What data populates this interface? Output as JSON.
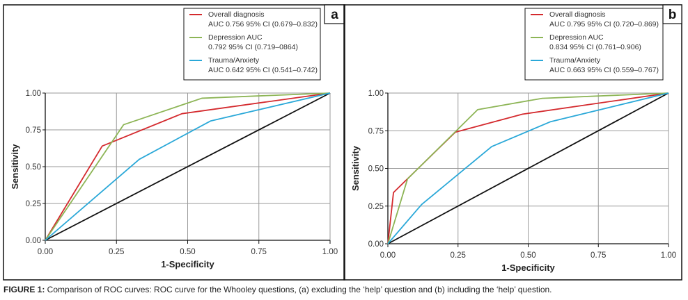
{
  "caption": {
    "label": "FIGURE 1:",
    "text": " Comparison of ROC curves: ROC curve for the Whooley questions, (a) excluding the ‘help’ question and (b) including the ‘help’ question."
  },
  "colors": {
    "overall": "#d42a2e",
    "depression": "#8db556",
    "trauma": "#2aa8d8",
    "reference": "#111111",
    "grid": "#9a9a9a"
  },
  "chart_data": [
    {
      "type": "line",
      "panel": "a",
      "xlabel": "1-Specificity",
      "ylabel": "Sensitivity",
      "xlim": [
        0,
        1
      ],
      "ylim": [
        0,
        1
      ],
      "xticks": [
        "0.00",
        "0.25",
        "0.50",
        "0.75",
        "1.00"
      ],
      "yticks": [
        "0.00",
        "0.25",
        "0.50",
        "0.75",
        "1.00"
      ],
      "grid": true,
      "legend_position": "top-right",
      "series": [
        {
          "name": "Overall diagnosis",
          "legend": [
            "Overall diagnosis",
            "AUC 0.756 95% CI (0.679–0.832)"
          ],
          "color_key": "overall",
          "x": [
            0,
            0.2,
            0.48,
            1
          ],
          "y": [
            0,
            0.64,
            0.86,
            1
          ]
        },
        {
          "name": "Depression AUC",
          "legend": [
            "Depression AUC",
            "0.792 95% CI (0.719–0864)"
          ],
          "color_key": "depression",
          "x": [
            0,
            0.275,
            0.55,
            1
          ],
          "y": [
            0,
            0.785,
            0.965,
            1
          ]
        },
        {
          "name": "Trauma/Anxiety",
          "legend": [
            "Trauma/Anxiety",
            "AUC 0.642 95% CI (0.541–0.742)"
          ],
          "color_key": "trauma",
          "x": [
            0,
            0.33,
            0.58,
            1
          ],
          "y": [
            0,
            0.55,
            0.81,
            1
          ]
        },
        {
          "name": "Reference",
          "legend": null,
          "color_key": "reference",
          "x": [
            0,
            1
          ],
          "y": [
            0,
            1
          ]
        }
      ]
    },
    {
      "type": "line",
      "panel": "b",
      "xlabel": "1-Specificity",
      "ylabel": "Sensitivity",
      "xlim": [
        0,
        1
      ],
      "ylim": [
        0,
        1
      ],
      "xticks": [
        "0.00",
        "0.25",
        "0.50",
        "0.75",
        "1.00"
      ],
      "yticks": [
        "0.00",
        "0.25",
        "0.50",
        "0.75",
        "1.00"
      ],
      "grid": true,
      "legend_position": "top-right",
      "series": [
        {
          "name": "Overall diagnosis",
          "legend": [
            "Overall diagnosis",
            "AUC 0.795 95% CI (0.720–0.869)"
          ],
          "color_key": "overall",
          "x": [
            0,
            0.02,
            0.24,
            0.48,
            1
          ],
          "y": [
            0,
            0.34,
            0.74,
            0.86,
            1
          ]
        },
        {
          "name": "Depression AUC",
          "legend": [
            "Depression AUC",
            "0.834 95% CI (0.761–0.906)"
          ],
          "color_key": "depression",
          "x": [
            0,
            0.07,
            0.32,
            0.55,
            1
          ],
          "y": [
            0,
            0.43,
            0.89,
            0.965,
            1
          ]
        },
        {
          "name": "Trauma/Anxiety",
          "legend": [
            "Trauma/Anxiety",
            "AUC 0.663 95% CI (0.559–0.767)"
          ],
          "color_key": "trauma",
          "x": [
            0,
            0.12,
            0.37,
            0.58,
            1
          ],
          "y": [
            0,
            0.26,
            0.645,
            0.81,
            1
          ]
        },
        {
          "name": "Reference",
          "legend": null,
          "color_key": "reference",
          "x": [
            0,
            1
          ],
          "y": [
            0,
            1
          ]
        }
      ]
    }
  ]
}
